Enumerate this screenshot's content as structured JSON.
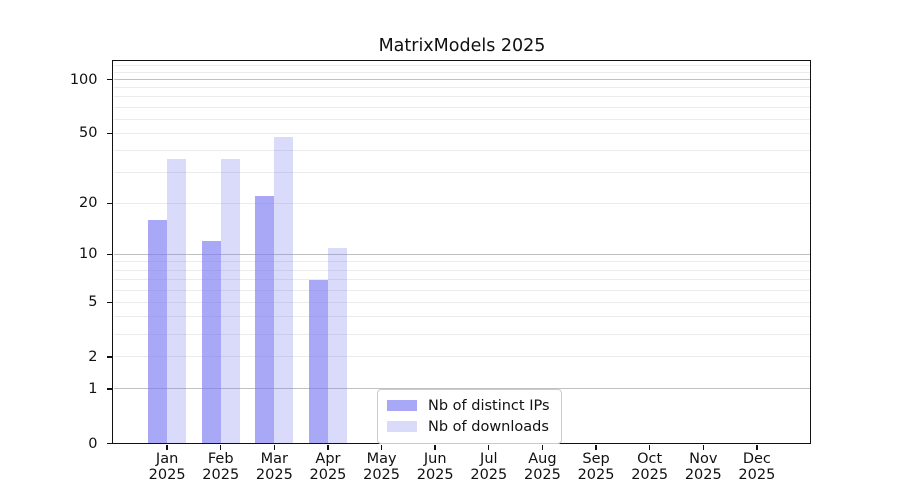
{
  "chart_data": {
    "type": "bar",
    "title": "MatrixModels 2025",
    "categories": [
      "Jan",
      "Feb",
      "Mar",
      "Apr",
      "May",
      "Jun",
      "Jul",
      "Aug",
      "Sep",
      "Oct",
      "Nov",
      "Dec"
    ],
    "category_year": "2025",
    "series": [
      {
        "name": "Nb of distinct IPs",
        "values": [
          16,
          12,
          22,
          7,
          0,
          0,
          0,
          0,
          0,
          0,
          0,
          0
        ],
        "color": "rgba(120,120,242,0.645)"
      },
      {
        "name": "Nb of downloads",
        "values": [
          36,
          36,
          48,
          11,
          0,
          0,
          0,
          0,
          0,
          0,
          0,
          0
        ],
        "color": "rgba(120,120,242,0.27)"
      }
    ],
    "xlabel": "",
    "ylabel": "",
    "y_scale": "log1p",
    "ylim": [
      0,
      125
    ],
    "y_ticks": [
      100,
      50,
      20,
      10,
      5,
      2,
      1,
      0
    ],
    "y_major_gridlines": [
      1,
      10,
      100
    ],
    "y_minor_gridlines": [
      2,
      3,
      4,
      5,
      6,
      7,
      8,
      9,
      20,
      30,
      40,
      50,
      60,
      70,
      80,
      90,
      110,
      120
    ],
    "grid": true,
    "legend_position": "lower center"
  },
  "colors": {
    "bar_base": "#7878f2",
    "bar_dark_apparent": "#a8a8f7",
    "bar_light_apparent": "#dbdbfb",
    "major_grid": "#c0c0c0",
    "minor_grid": "#ebebeb",
    "axis_frame": "#111111",
    "legend_border": "#cbcbcb",
    "background": "#ffffff"
  }
}
